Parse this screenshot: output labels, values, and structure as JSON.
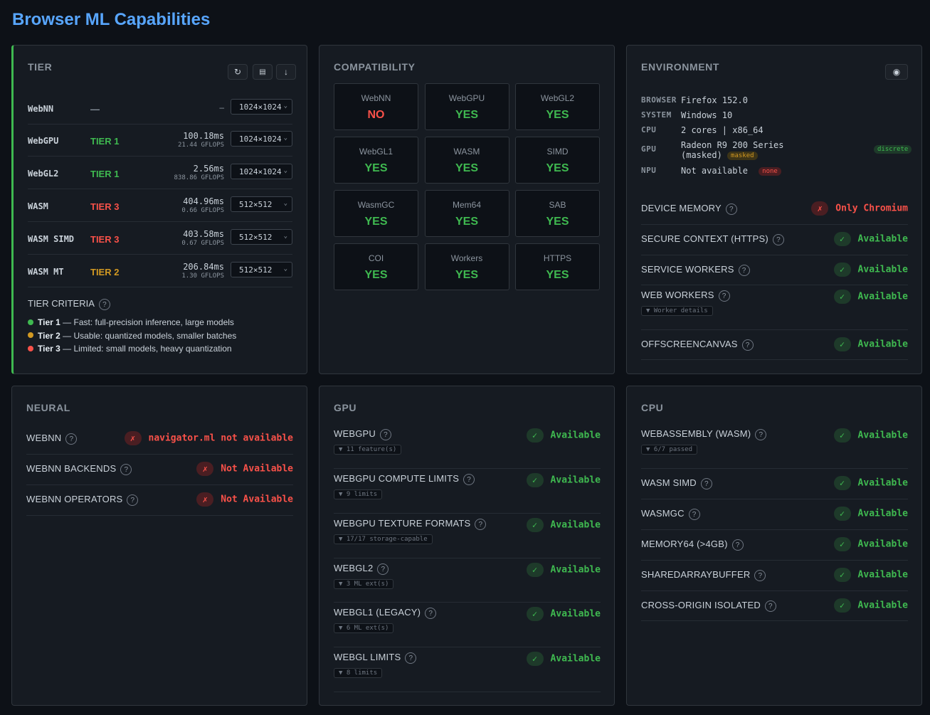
{
  "title": "Browser ML Capabilities",
  "colors": {
    "green": "#3fb950",
    "orange": "#d29922",
    "red": "#f85149",
    "accent": "#58a6ff"
  },
  "tier": {
    "title": "TIER",
    "buttons": [
      "refresh-icon",
      "save-icon",
      "download-icon"
    ],
    "rows": [
      {
        "name": "WebNN",
        "tier": "—",
        "tier_color": "#8b949e",
        "ms": "",
        "gflops": "",
        "dash": "–",
        "size": "1024×1024"
      },
      {
        "name": "WebGPU",
        "tier": "TIER 1",
        "tier_color": "#3fb950",
        "ms": "100.18ms",
        "gflops": "21.44 GFLOPS",
        "dash": "",
        "size": "1024×1024"
      },
      {
        "name": "WebGL2",
        "tier": "TIER 1",
        "tier_color": "#3fb950",
        "ms": "2.56ms",
        "gflops": "838.86 GFLOPS",
        "dash": "",
        "size": "1024×1024"
      },
      {
        "name": "WASM",
        "tier": "TIER 3",
        "tier_color": "#f85149",
        "ms": "404.96ms",
        "gflops": "0.66 GFLOPS",
        "dash": "",
        "size": "512×512"
      },
      {
        "name": "WASM SIMD",
        "tier": "TIER 3",
        "tier_color": "#f85149",
        "ms": "403.58ms",
        "gflops": "0.67 GFLOPS",
        "dash": "",
        "size": "512×512"
      },
      {
        "name": "WASM MT",
        "tier": "TIER 2",
        "tier_color": "#d29922",
        "ms": "206.84ms",
        "gflops": "1.30 GFLOPS",
        "dash": "",
        "size": "512×512"
      }
    ],
    "criteria_title": "TIER CRITERIA",
    "criteria": [
      {
        "label": "Tier 1",
        "desc": "— Fast: full-precision inference, large models",
        "color": "#3fb950"
      },
      {
        "label": "Tier 2",
        "desc": "— Usable: quantized models, smaller batches",
        "color": "#d29922"
      },
      {
        "label": "Tier 3",
        "desc": "— Limited: small models, heavy quantization",
        "color": "#f85149"
      }
    ]
  },
  "compat": {
    "title": "COMPATIBILITY",
    "cells": [
      {
        "label": "WebNN",
        "value": "NO"
      },
      {
        "label": "WebGPU",
        "value": "YES"
      },
      {
        "label": "WebGL2",
        "value": "YES"
      },
      {
        "label": "WebGL1",
        "value": "YES"
      },
      {
        "label": "WASM",
        "value": "YES"
      },
      {
        "label": "SIMD",
        "value": "YES"
      },
      {
        "label": "WasmGC",
        "value": "YES"
      },
      {
        "label": "Mem64",
        "value": "YES"
      },
      {
        "label": "SAB",
        "value": "YES"
      },
      {
        "label": "COI",
        "value": "YES"
      },
      {
        "label": "Workers",
        "value": "YES"
      },
      {
        "label": "HTTPS",
        "value": "YES"
      }
    ]
  },
  "env": {
    "title": "ENVIRONMENT",
    "browser_k": "BROWSER",
    "browser_v": "Firefox 152.0",
    "system_k": "SYSTEM",
    "system_v": "Windows 10",
    "cpu_k": "CPU",
    "cpu_v": "2 cores | x86_64",
    "gpu_k": "GPU",
    "gpu_v": "Radeon R9 200 Series",
    "gpu_v2": "(masked)",
    "gpu_tag": "masked",
    "gpu_tag2": "discrete",
    "npu_k": "NPU",
    "npu_v": "Not available",
    "npu_tag": "none",
    "features": [
      {
        "name": "DEVICE MEMORY",
        "status": "Only Chromium",
        "ok": false,
        "sub": ""
      },
      {
        "name": "SECURE CONTEXT (HTTPS)",
        "status": "Available",
        "ok": true,
        "sub": ""
      },
      {
        "name": "SERVICE WORKERS",
        "status": "Available",
        "ok": true,
        "sub": ""
      },
      {
        "name": "WEB WORKERS",
        "status": "Available",
        "ok": true,
        "sub": "▼ Worker details"
      },
      {
        "name": "OFFSCREENCANVAS",
        "status": "Available",
        "ok": true,
        "sub": ""
      }
    ]
  },
  "neural": {
    "title": "NEURAL",
    "features": [
      {
        "name": "WEBNN",
        "status": "navigator.ml not available",
        "ok": false,
        "sub": ""
      },
      {
        "name": "WEBNN BACKENDS",
        "status": "Not Available",
        "ok": false,
        "sub": ""
      },
      {
        "name": "WEBNN OPERATORS",
        "status": "Not Available",
        "ok": false,
        "sub": ""
      }
    ]
  },
  "gpu": {
    "title": "GPU",
    "features": [
      {
        "name": "WEBGPU",
        "status": "Available",
        "ok": true,
        "sub": "▼ 11 feature(s)"
      },
      {
        "name": "WEBGPU COMPUTE LIMITS",
        "status": "Available",
        "ok": true,
        "sub": "▼ 9 limits"
      },
      {
        "name": "WEBGPU TEXTURE FORMATS",
        "status": "Available",
        "ok": true,
        "sub": "▼ 17/17 storage-capable"
      },
      {
        "name": "WEBGL2",
        "status": "Available",
        "ok": true,
        "sub": "▼ 3 ML ext(s)"
      },
      {
        "name": "WEBGL1 (LEGACY)",
        "status": "Available",
        "ok": true,
        "sub": "▼ 6 ML ext(s)"
      },
      {
        "name": "WEBGL LIMITS",
        "status": "Available",
        "ok": true,
        "sub": "▼ 8 limits"
      }
    ]
  },
  "cpu": {
    "title": "CPU",
    "features": [
      {
        "name": "WEBASSEMBLY (WASM)",
        "status": "Available",
        "ok": true,
        "sub": "▼ 6/7 passed"
      },
      {
        "name": "WASM SIMD",
        "status": "Available",
        "ok": true,
        "sub": ""
      },
      {
        "name": "WASMGC",
        "status": "Available",
        "ok": true,
        "sub": ""
      },
      {
        "name": "MEMORY64 (>4GB)",
        "status": "Available",
        "ok": true,
        "sub": ""
      },
      {
        "name": "SHAREDARRAYBUFFER",
        "status": "Available",
        "ok": true,
        "sub": ""
      },
      {
        "name": "CROSS-ORIGIN ISOLATED",
        "status": "Available",
        "ok": true,
        "sub": ""
      }
    ]
  }
}
